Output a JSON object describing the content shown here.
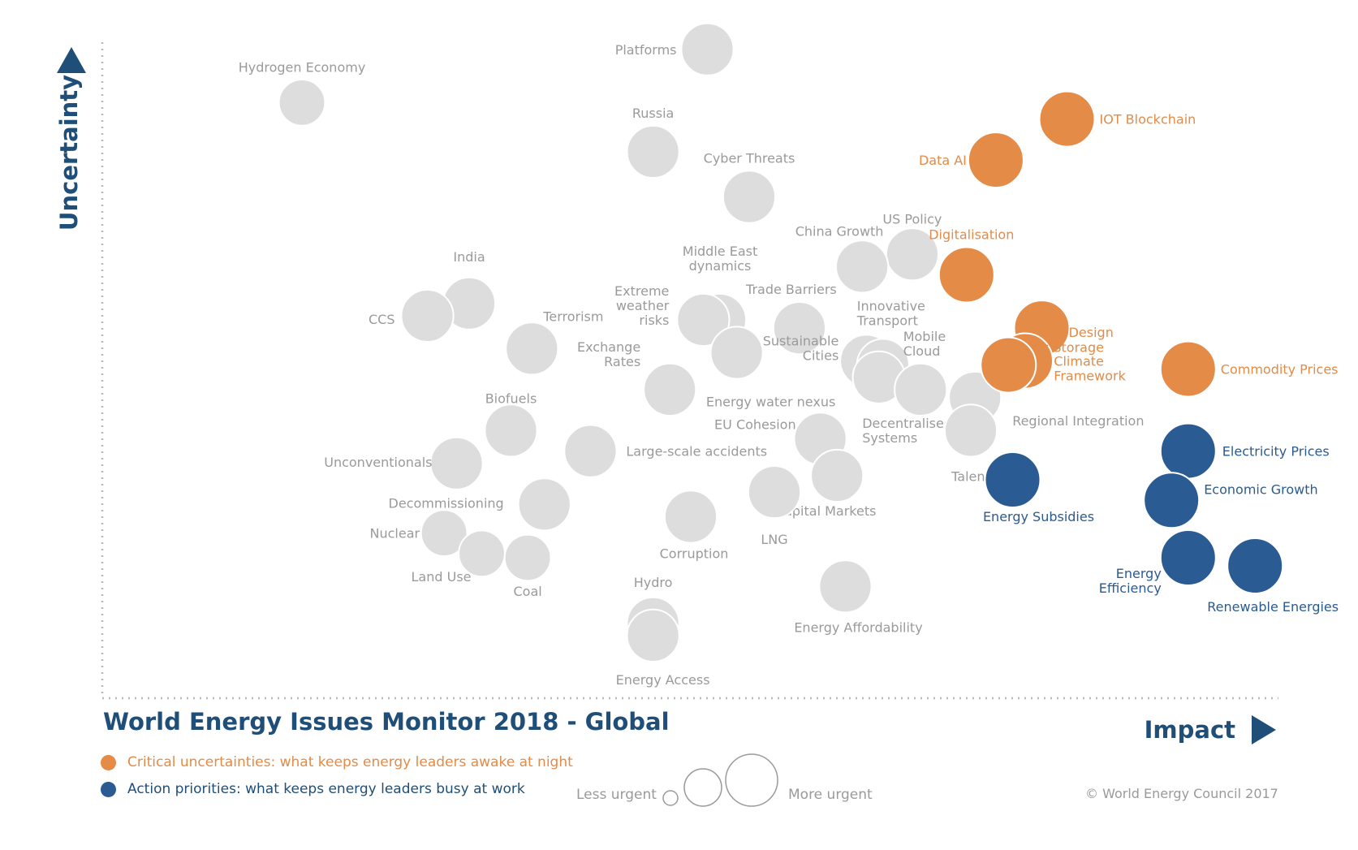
{
  "title": "World Energy Issues Monitor 2018 - Global",
  "copyright": "© World Energy Council 2017",
  "colors": {
    "critical": "#e38b47",
    "action": "#2a5b92",
    "issue": "#dddddd",
    "label_grey": "#9a9a9a",
    "axis": "#1f4e79"
  },
  "legend": {
    "critical": "Critical uncertainties: what keeps energy leaders awake at night",
    "action": "Action priorities: what keeps energy leaders busy at work",
    "less_urgent": "Less urgent",
    "more_urgent": "More urgent"
  },
  "chart_data": {
    "type": "scatter",
    "xlabel": "Impact",
    "ylabel": "Uncertainty",
    "grid": false,
    "points": [
      {
        "name": "Platforms",
        "x": 6.85,
        "y": 7.25,
        "size": 3,
        "group": "issue"
      },
      {
        "name": "Hydrogen Economy",
        "x": 2.0,
        "y": 6.6,
        "size": 2,
        "group": "issue"
      },
      {
        "name": "Russia",
        "x": 6.2,
        "y": 6.0,
        "size": 3,
        "group": "issue"
      },
      {
        "name": "Cyber Threats",
        "x": 7.35,
        "y": 5.45,
        "size": 3,
        "group": "issue"
      },
      {
        "name": "US Policy",
        "x": 9.3,
        "y": 4.75,
        "size": 3,
        "group": "issue"
      },
      {
        "name": "China Growth",
        "x": 8.7,
        "y": 4.6,
        "size": 3,
        "group": "issue"
      },
      {
        "name": "Middle East dynamics",
        "x": 7.0,
        "y": 3.95,
        "size": 3,
        "group": "issue"
      },
      {
        "name": "Extreme weather risks",
        "x": 6.8,
        "y": 3.95,
        "size": 3,
        "group": "issue"
      },
      {
        "name": "Trade Barriers",
        "x": 7.95,
        "y": 3.85,
        "size": 3,
        "group": "issue"
      },
      {
        "name": "India",
        "x": 4.0,
        "y": 4.15,
        "size": 3,
        "group": "issue"
      },
      {
        "name": "CCS",
        "x": 3.5,
        "y": 4.0,
        "size": 3,
        "group": "issue"
      },
      {
        "name": "Terrorism",
        "x": 4.75,
        "y": 3.6,
        "size": 3,
        "group": "issue"
      },
      {
        "name": "Energy water nexus",
        "x": 7.2,
        "y": 3.55,
        "size": 3,
        "group": "issue"
      },
      {
        "name": "Sustainable Cities",
        "x": 8.75,
        "y": 3.45,
        "size": 3,
        "group": "issue"
      },
      {
        "name": "Innovative Transport",
        "x": 8.95,
        "y": 3.4,
        "size": 3,
        "group": "issue"
      },
      {
        "name": "Mobile Cloud",
        "x": 8.9,
        "y": 3.25,
        "size": 3,
        "group": "issue"
      },
      {
        "name": "Exchange Rates",
        "x": 6.4,
        "y": 3.1,
        "size": 3,
        "group": "issue"
      },
      {
        "name": "Decentralised Systems",
        "x": 9.4,
        "y": 3.1,
        "size": 3,
        "group": "issue"
      },
      {
        "name": "Regional Integration",
        "x": 10.05,
        "y": 3.0,
        "size": 3,
        "group": "issue"
      },
      {
        "name": "Talent",
        "x": 10.0,
        "y": 2.6,
        "size": 3,
        "group": "issue"
      },
      {
        "name": "EU Cohesion",
        "x": 8.2,
        "y": 2.5,
        "size": 3,
        "group": "issue"
      },
      {
        "name": "Biofuels",
        "x": 4.5,
        "y": 2.6,
        "size": 3,
        "group": "issue"
      },
      {
        "name": "Large-scale accidents",
        "x": 5.45,
        "y": 2.35,
        "size": 3,
        "group": "issue"
      },
      {
        "name": "Unconventionals",
        "x": 3.85,
        "y": 2.2,
        "size": 3,
        "group": "issue"
      },
      {
        "name": "Capital Markets",
        "x": 8.4,
        "y": 2.05,
        "size": 3,
        "group": "issue"
      },
      {
        "name": "LNG",
        "x": 7.65,
        "y": 1.85,
        "size": 3,
        "group": "issue"
      },
      {
        "name": "Decommissioning",
        "x": 4.9,
        "y": 1.7,
        "size": 3,
        "group": "issue"
      },
      {
        "name": "Corruption",
        "x": 6.65,
        "y": 1.55,
        "size": 3,
        "group": "issue"
      },
      {
        "name": "Nuclear",
        "x": 3.7,
        "y": 1.35,
        "size": 2,
        "group": "issue"
      },
      {
        "name": "Land Use",
        "x": 4.15,
        "y": 1.1,
        "size": 2,
        "group": "issue"
      },
      {
        "name": "Coal",
        "x": 4.7,
        "y": 1.05,
        "size": 2,
        "group": "issue"
      },
      {
        "name": "Energy Affordability",
        "x": 8.5,
        "y": 0.7,
        "size": 3,
        "group": "issue"
      },
      {
        "name": "Hydro",
        "x": 6.2,
        "y": 0.25,
        "size": 3,
        "group": "issue"
      },
      {
        "name": "Energy Access",
        "x": 6.2,
        "y": 0.1,
        "size": 3,
        "group": "issue"
      },
      {
        "name": "IOT Blockchain",
        "x": 11.15,
        "y": 6.4,
        "size": 3.5,
        "group": "critical"
      },
      {
        "name": "Data AI",
        "x": 10.3,
        "y": 5.9,
        "size": 3.5,
        "group": "critical"
      },
      {
        "name": "Digitalisation",
        "x": 9.95,
        "y": 4.5,
        "size": 3.5,
        "group": "critical"
      },
      {
        "name": "Market Design",
        "x": 10.85,
        "y": 3.85,
        "size": 3.5,
        "group": "critical"
      },
      {
        "name": "Electric Storage",
        "x": 10.65,
        "y": 3.45,
        "size": 3.5,
        "group": "critical"
      },
      {
        "name": "Climate Framework",
        "x": 10.45,
        "y": 3.4,
        "size": 3.5,
        "group": "critical"
      },
      {
        "name": "Commodity Prices",
        "x": 12.6,
        "y": 3.35,
        "size": 3.5,
        "group": "critical"
      },
      {
        "name": "Electricity Prices",
        "x": 12.6,
        "y": 2.35,
        "size": 3.5,
        "group": "action"
      },
      {
        "name": "Economic Growth",
        "x": 12.4,
        "y": 1.75,
        "size": 3.5,
        "group": "action"
      },
      {
        "name": "Energy Subsidies",
        "x": 10.5,
        "y": 2.0,
        "size": 3.5,
        "group": "action"
      },
      {
        "name": "Energy Efficiency",
        "x": 12.6,
        "y": 1.05,
        "size": 3.5,
        "group": "action"
      },
      {
        "name": "Renewable Energies",
        "x": 13.4,
        "y": 0.95,
        "size": 3.5,
        "group": "action"
      }
    ]
  }
}
